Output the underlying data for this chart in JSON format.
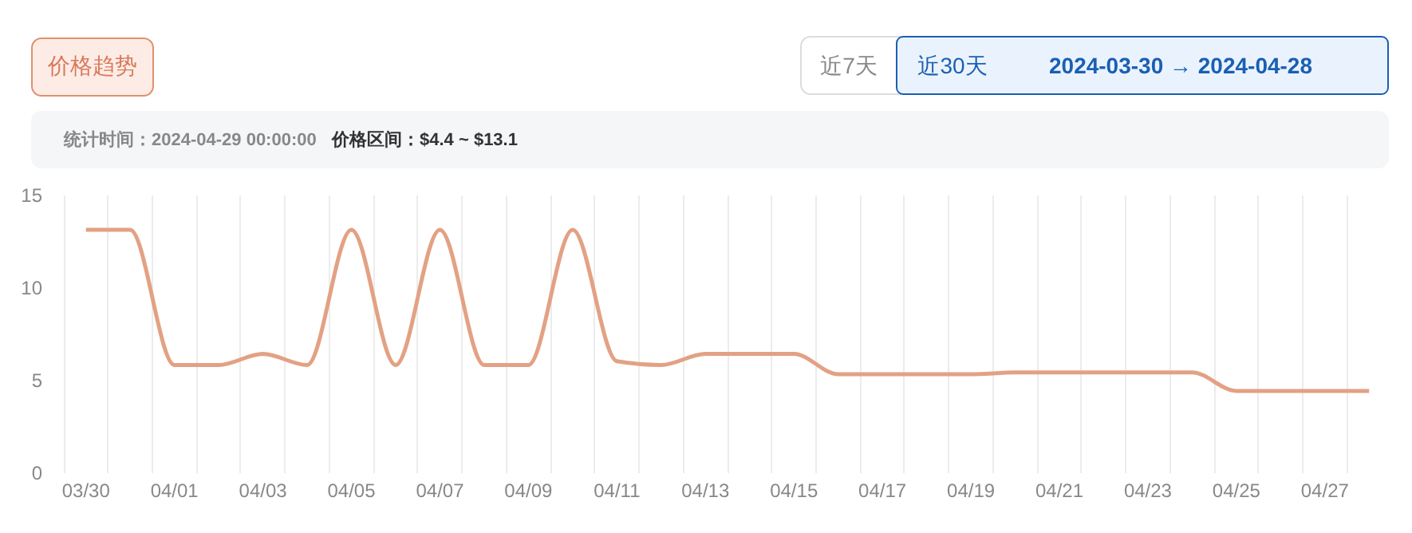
{
  "chart_data": {
    "type": "line",
    "title": "价格趋势",
    "annotations": [
      "近7天",
      "近30天",
      "2024-03-30  →  2024-04-28",
      "统计时间：2024-04-29 00:00:00",
      "价格区间：$4.4  ~  $13.1"
    ],
    "categories": [
      "03/30",
      null,
      "04/01",
      null,
      "04/03",
      null,
      "04/05",
      null,
      "04/07",
      null,
      "04/09",
      null,
      "04/11",
      null,
      "04/13",
      null,
      "04/15",
      null,
      "04/17",
      null,
      "04/19",
      null,
      "04/21",
      null,
      "04/23",
      null,
      "04/25",
      null,
      "04/27",
      null
    ],
    "series": [
      {
        "color": "#e3a184",
        "values": [
          13.1,
          13.1,
          5.8,
          5.8,
          6.4,
          5.8,
          13.1,
          5.8,
          13.1,
          5.8,
          5.8,
          13.1,
          6.0,
          5.8,
          6.4,
          6.4,
          6.4,
          5.3,
          5.3,
          5.3,
          5.3,
          5.4,
          5.4,
          5.4,
          5.4,
          5.4,
          4.4,
          4.4,
          4.4,
          4.4
        ]
      }
    ],
    "ylim": [
      0,
      15
    ],
    "yticks": [
      0,
      5,
      10,
      15
    ],
    "grid": "x",
    "marker": "none",
    "line_style": "solid"
  }
}
